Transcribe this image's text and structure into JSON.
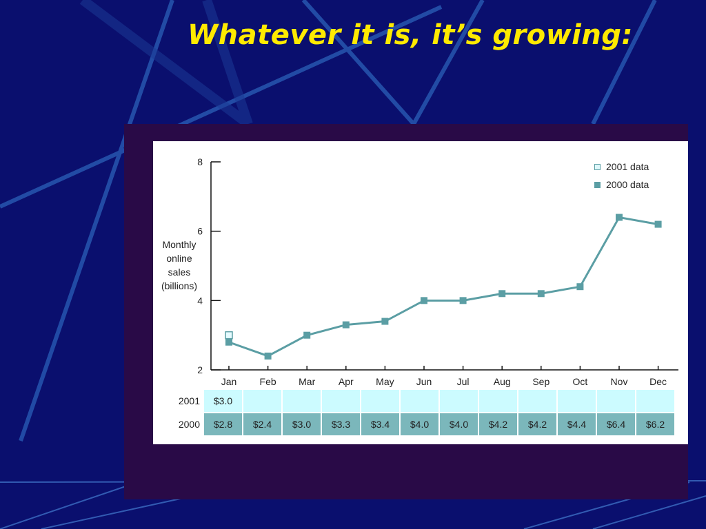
{
  "title": "Whatever it is, it’s growing:",
  "colors": {
    "background": "#0a0f6e",
    "title": "#ffea00",
    "frame": "#290a47",
    "line": "#5b9ea4",
    "row_2001": "#ccfbff",
    "row_2000": "#7bb7bb"
  },
  "chart_data": {
    "type": "line",
    "categories": [
      "Jan",
      "Feb",
      "Mar",
      "Apr",
      "May",
      "Jun",
      "Jul",
      "Aug",
      "Sep",
      "Oct",
      "Nov",
      "Dec"
    ],
    "series": [
      {
        "name": "2001 data",
        "values": [
          3.0,
          null,
          null,
          null,
          null,
          null,
          null,
          null,
          null,
          null,
          null,
          null
        ]
      },
      {
        "name": "2000 data",
        "values": [
          2.8,
          2.4,
          3.0,
          3.3,
          3.4,
          4.0,
          4.0,
          4.2,
          4.2,
          4.4,
          6.4,
          6.2
        ]
      }
    ],
    "ylabel_lines": [
      "Monthly",
      "online",
      "sales",
      "(billions)"
    ],
    "ylim": [
      2,
      8
    ],
    "yticks": [
      "2",
      "4",
      "6",
      "8"
    ],
    "legend_position": "top-right",
    "grid": false
  },
  "table": {
    "rows": [
      {
        "label": "2001",
        "cells": [
          "$3.0",
          "",
          "",
          "",
          "",
          "",
          "",
          "",
          "",
          "",
          "",
          ""
        ]
      },
      {
        "label": "2000",
        "cells": [
          "$2.8",
          "$2.4",
          "$3.0",
          "$3.3",
          "$3.4",
          "$4.0",
          "$4.0",
          "$4.2",
          "$4.2",
          "$4.4",
          "$6.4",
          "$6.2"
        ]
      }
    ]
  }
}
